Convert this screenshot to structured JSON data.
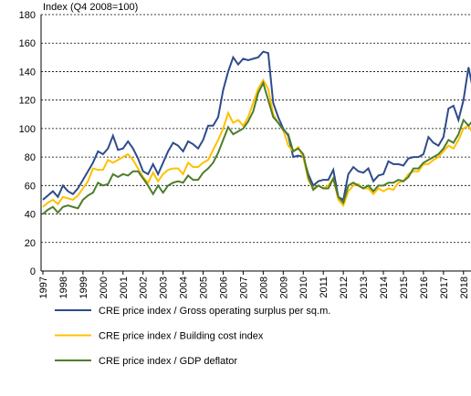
{
  "chart_data": {
    "type": "line",
    "y_label": "Index (Q4 2008=100)",
    "categories": [
      "1997",
      null,
      null,
      null,
      "1998",
      null,
      null,
      null,
      "1999",
      null,
      null,
      null,
      "2000",
      null,
      null,
      null,
      "2001",
      null,
      null,
      null,
      "2002",
      null,
      null,
      null,
      "2003",
      null,
      null,
      null,
      "2004",
      null,
      null,
      null,
      "2005",
      null,
      null,
      null,
      "2006",
      null,
      null,
      null,
      "2007",
      null,
      null,
      null,
      "2008",
      null,
      null,
      null,
      "2009",
      null,
      null,
      null,
      "2010",
      null,
      null,
      null,
      "2011",
      null,
      null,
      null,
      "2012",
      null,
      null,
      null,
      "2013",
      null,
      null,
      null,
      "2014",
      null,
      null,
      null,
      "2015",
      null,
      null,
      null,
      "2016",
      null,
      null,
      null,
      "2017",
      null,
      null,
      null,
      "2018",
      null,
      null,
      null
    ],
    "series": [
      {
        "name": "CRE price index / Gross operating surplus per sq.m.",
        "color": "#2e4b8c",
        "values": [
          50,
          53,
          56,
          52,
          60,
          56,
          54,
          58,
          64,
          70,
          76,
          84,
          82,
          86,
          95,
          85,
          86,
          91,
          86,
          79,
          70,
          68,
          75,
          68,
          76,
          84,
          90,
          88,
          84,
          91,
          89,
          86,
          92,
          102,
          102,
          108,
          127,
          140,
          150,
          145,
          149,
          148,
          149,
          150,
          154,
          153,
          118,
          108,
          100,
          95,
          80,
          81,
          80,
          68,
          60,
          63,
          64,
          64,
          71,
          52,
          50,
          68,
          73,
          70,
          69,
          72,
          63,
          67,
          68,
          77,
          75,
          75,
          74,
          79,
          80,
          80,
          82,
          94,
          90,
          88,
          94,
          114,
          116,
          106,
          120,
          143,
          126,
          129
        ]
      },
      {
        "name": "CRE price index / Building cost index",
        "color": "#ffc000",
        "values": [
          45,
          48,
          50,
          47,
          52,
          51,
          50,
          53,
          58,
          63,
          72,
          71,
          71,
          78,
          76,
          78,
          80,
          82,
          78,
          72,
          66,
          62,
          69,
          63,
          68,
          71,
          72,
          72,
          68,
          76,
          73,
          73,
          76,
          78,
          85,
          92,
          100,
          111,
          104,
          106,
          102,
          108,
          118,
          128,
          134,
          128,
          110,
          104,
          99,
          88,
          84,
          87,
          80,
          64,
          58,
          60,
          58,
          60,
          65,
          50,
          46,
          56,
          60,
          61,
          58,
          58,
          54,
          58,
          56,
          58,
          57,
          62,
          63,
          68,
          70,
          70,
          75,
          75,
          78,
          80,
          84,
          88,
          86,
          92,
          100,
          102,
          96,
          100
        ]
      },
      {
        "name": "CRE price index / GDP deflator",
        "color": "#4e7d2a",
        "values": [
          40,
          43,
          45,
          41,
          45,
          46,
          45,
          44,
          50,
          53,
          55,
          62,
          60,
          61,
          68,
          66,
          68,
          67,
          70,
          70,
          65,
          60,
          54,
          60,
          55,
          60,
          62,
          63,
          62,
          67,
          64,
          64,
          69,
          72,
          76,
          83,
          92,
          101,
          96,
          98,
          100,
          105,
          112,
          125,
          132,
          120,
          108,
          104,
          99,
          96,
          84,
          86,
          82,
          66,
          57,
          60,
          58,
          58,
          65,
          52,
          48,
          60,
          62,
          60,
          58,
          60,
          56,
          60,
          60,
          62,
          62,
          64,
          63,
          66,
          72,
          72,
          76,
          78,
          80,
          82,
          86,
          92,
          90,
          96,
          106,
          102,
          106,
          111
        ]
      }
    ],
    "ylim": [
      0,
      180
    ],
    "yticks": [
      0,
      20,
      40,
      60,
      80,
      100,
      120,
      140,
      160,
      180
    ],
    "grid": true
  }
}
